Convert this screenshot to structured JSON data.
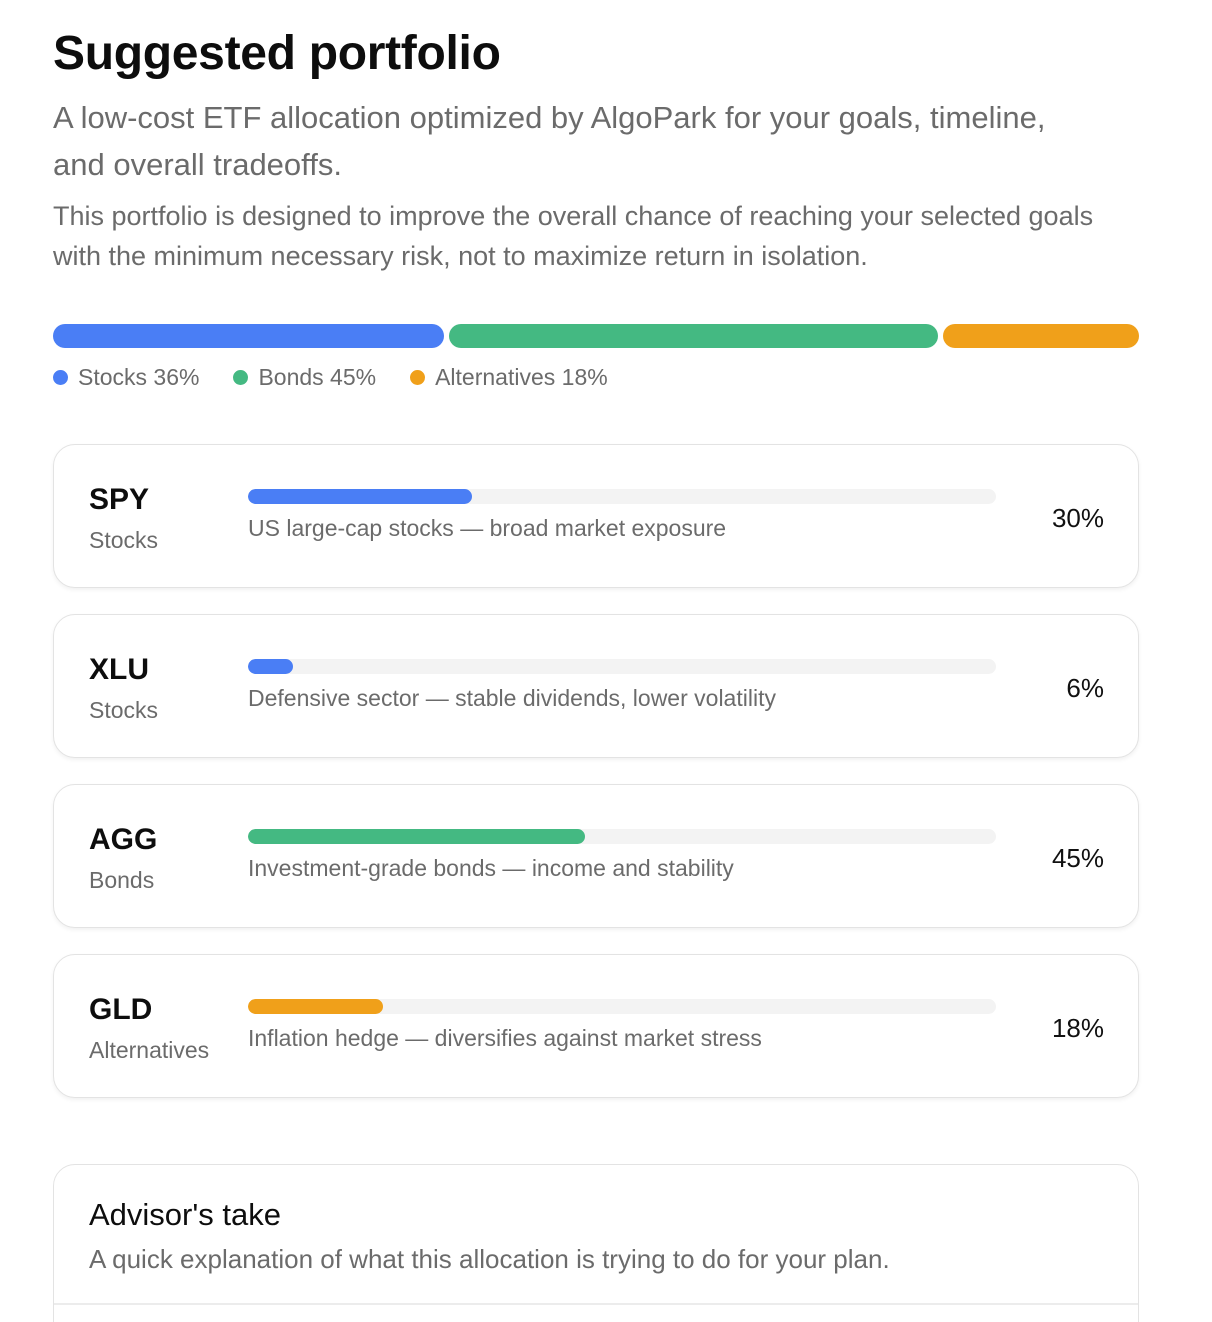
{
  "header": {
    "title": "Suggested portfolio",
    "subtitle": "A low-cost ETF allocation optimized by AlgoPark for your goals, timeline, and overall tradeoffs.",
    "description": "This portfolio is designed to improve the overall chance of reaching your selected goals with the minimum necessary risk, not to maximize return in isolation."
  },
  "allocation": {
    "segments": [
      {
        "name": "Stocks",
        "percent": 36,
        "color": "#4a7ef5"
      },
      {
        "name": "Bonds",
        "percent": 45,
        "color": "#44b982"
      },
      {
        "name": "Alternatives",
        "percent": 18,
        "color": "#f0a01a"
      }
    ],
    "legend": [
      "Stocks 36%",
      "Bonds 45%",
      "Alternatives 18%"
    ]
  },
  "holdings": [
    {
      "ticker": "SPY",
      "asset_class": "Stocks",
      "description": "US large-cap stocks — broad market exposure",
      "percent": 30,
      "percent_label": "30%",
      "color": "#4a7ef5"
    },
    {
      "ticker": "XLU",
      "asset_class": "Stocks",
      "description": "Defensive sector — stable dividends, lower volatility",
      "percent": 6,
      "percent_label": "6%",
      "color": "#4a7ef5"
    },
    {
      "ticker": "AGG",
      "asset_class": "Bonds",
      "description": "Investment-grade bonds — income and stability",
      "percent": 45,
      "percent_label": "45%",
      "color": "#44b982"
    },
    {
      "ticker": "GLD",
      "asset_class": "Alternatives",
      "description": "Inflation hedge — diversifies against market stress",
      "percent": 18,
      "percent_label": "18%",
      "color": "#f0a01a"
    }
  ],
  "advisor": {
    "title": "Advisor's take",
    "subtitle": "A quick explanation of what this allocation is trying to do for your plan."
  }
}
